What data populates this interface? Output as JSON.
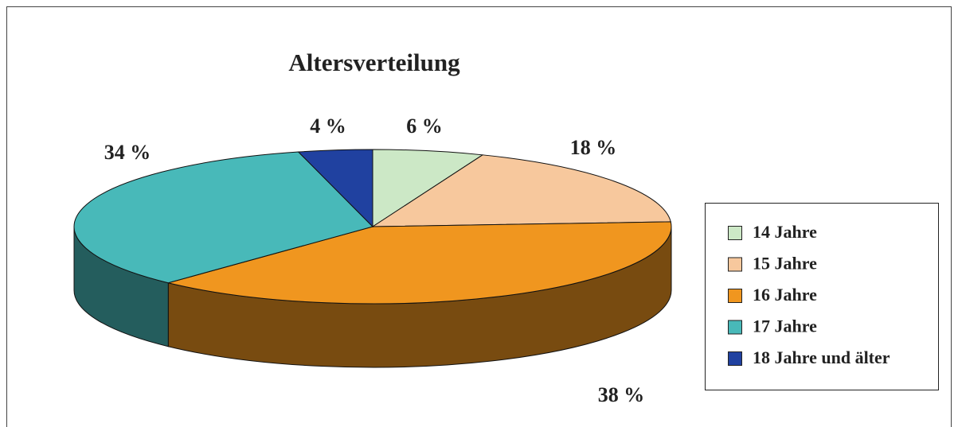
{
  "chart_data": {
    "type": "pie",
    "title": "Altersverteilung",
    "categories": [
      "14 Jahre",
      "15 Jahre",
      "16 Jahre",
      "17 Jahre",
      "18 Jahre und älter"
    ],
    "values": [
      6,
      18,
      38,
      34,
      4
    ],
    "value_labels": [
      "6 %",
      "18 %",
      "38 %",
      "34 %",
      "4 %"
    ],
    "colors": [
      "#cce8c6",
      "#f7c89d",
      "#f0961f",
      "#48b9b9",
      "#2041a0"
    ],
    "legend": "right"
  }
}
